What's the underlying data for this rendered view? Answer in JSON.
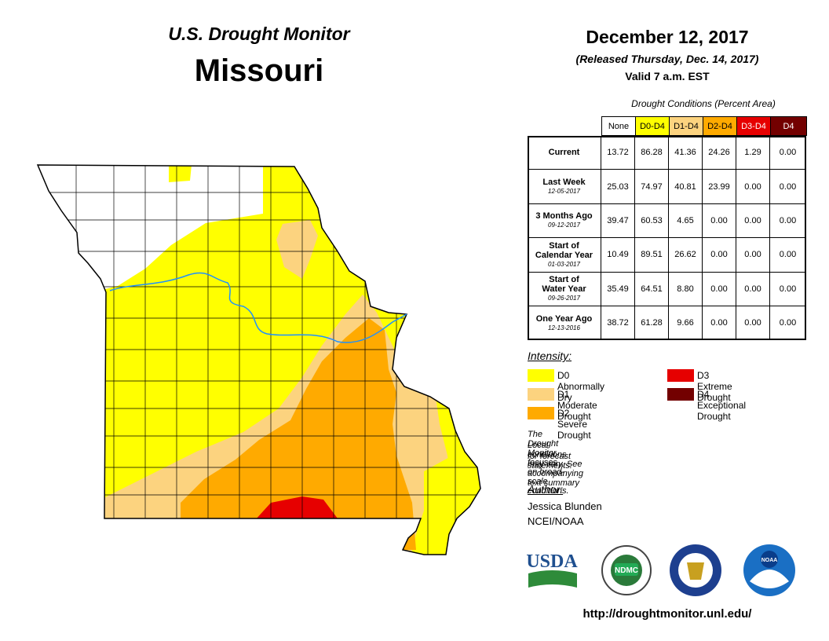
{
  "header": {
    "title": "U.S. Drought Monitor",
    "state": "Missouri",
    "date": "December 12, 2017",
    "released": "(Released Thursday, Dec. 14, 2017)",
    "valid": "Valid 7 a.m. EST"
  },
  "table": {
    "caption": "Drought Conditions (Percent Area)",
    "columns": [
      {
        "label": "None",
        "color": "#ffffff",
        "text": "#000000"
      },
      {
        "label": "D0-D4",
        "color": "#ffff00",
        "text": "#000000"
      },
      {
        "label": "D1-D4",
        "color": "#fcd37f",
        "text": "#000000"
      },
      {
        "label": "D2-D4",
        "color": "#ffaa00",
        "text": "#000000"
      },
      {
        "label": "D3-D4",
        "color": "#e60000",
        "text": "#ffffff"
      },
      {
        "label": "D4",
        "color": "#730000",
        "text": "#ffffff"
      }
    ],
    "rows": [
      {
        "label": [
          "Current"
        ],
        "values": [
          "13.72",
          "86.28",
          "41.36",
          "24.26",
          "1.29",
          "0.00"
        ]
      },
      {
        "label": [
          "Last Week"
        ],
        "date": "12-05-2017",
        "values": [
          "25.03",
          "74.97",
          "40.81",
          "23.99",
          "0.00",
          "0.00"
        ]
      },
      {
        "label": [
          "3 Months Ago"
        ],
        "date": "09-12-2017",
        "values": [
          "39.47",
          "60.53",
          "4.65",
          "0.00",
          "0.00",
          "0.00"
        ]
      },
      {
        "label": [
          "Start of",
          "Calendar Year"
        ],
        "date": "01-03-2017",
        "values": [
          "10.49",
          "89.51",
          "26.62",
          "0.00",
          "0.00",
          "0.00"
        ]
      },
      {
        "label": [
          "Start of",
          "Water Year"
        ],
        "date": "09-26-2017",
        "values": [
          "35.49",
          "64.51",
          "8.80",
          "0.00",
          "0.00",
          "0.00"
        ]
      },
      {
        "label": [
          "One Year Ago"
        ],
        "date": "12-13-2016",
        "values": [
          "38.72",
          "61.28",
          "9.66",
          "0.00",
          "0.00",
          "0.00"
        ]
      }
    ]
  },
  "legend": {
    "title": "Intensity:",
    "items": [
      {
        "label": "D0 Abnormally Dry",
        "color": "#ffff00"
      },
      {
        "label": "D1 Moderate Drought",
        "color": "#fcd37f"
      },
      {
        "label": "D2 Severe Drought",
        "color": "#ffaa00"
      },
      {
        "label": "D3 Extreme Drought",
        "color": "#e60000"
      },
      {
        "label": "D4 Exceptional Drought",
        "color": "#730000"
      }
    ]
  },
  "note": [
    "The Drought Monitor focuses on broad-scale conditions.",
    "Local conditions may vary. See accompanying text summary",
    "for forecast statements."
  ],
  "author": {
    "label": "Author:",
    "name": "Jessica Blunden",
    "org": "NCEI/NOAA"
  },
  "logos": [
    "USDA",
    "NDMC",
    "NOAA"
  ],
  "url": "http://droughtmonitor.unl.edu/"
}
